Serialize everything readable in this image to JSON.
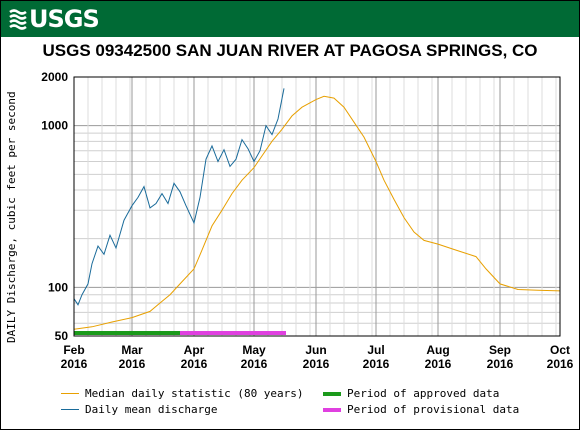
{
  "header": {
    "logo_text": "USGS",
    "logo_icon": "usgs-wave-logo",
    "banner_color": "#006a35"
  },
  "chart_data": {
    "type": "line",
    "title": "USGS 09342500 SAN JUAN RIVER AT PAGOSA SPRINGS, CO",
    "ylabel": "DAILY Discharge, cubic feet per second",
    "yscale": "log",
    "ylim": [
      50,
      2000
    ],
    "y_ticks": [
      50,
      100,
      1000,
      2000
    ],
    "y_tick_labels": [
      "50",
      "100",
      "1000",
      "2000"
    ],
    "xlim": [
      "2016-02-01",
      "2016-10-01"
    ],
    "x_ticks": [
      {
        "date": "2016-02-01",
        "label": [
          "Feb",
          "2016"
        ]
      },
      {
        "date": "2016-03-01",
        "label": [
          "Mar",
          "2016"
        ]
      },
      {
        "date": "2016-04-01",
        "label": [
          "Apr",
          "2016"
        ]
      },
      {
        "date": "2016-05-01",
        "label": [
          "May",
          "2016"
        ]
      },
      {
        "date": "2016-06-01",
        "label": [
          "Jun",
          "2016"
        ]
      },
      {
        "date": "2016-07-01",
        "label": [
          "Jul",
          "2016"
        ]
      },
      {
        "date": "2016-08-01",
        "label": [
          "Aug",
          "2016"
        ]
      },
      {
        "date": "2016-09-01",
        "label": [
          "Sep",
          "2016"
        ]
      },
      {
        "date": "2016-10-01",
        "label": [
          "Oct",
          "2016"
        ]
      }
    ],
    "grid": true,
    "legend_position": "bottom",
    "series": [
      {
        "name": "Median daily statistic (80 years)",
        "color": "#e8a000",
        "points": [
          [
            "2016-02-01",
            55
          ],
          [
            "2016-02-10",
            57
          ],
          [
            "2016-02-20",
            61
          ],
          [
            "2016-03-01",
            65
          ],
          [
            "2016-03-10",
            71
          ],
          [
            "2016-03-15",
            80
          ],
          [
            "2016-03-20",
            90
          ],
          [
            "2016-03-25",
            105
          ],
          [
            "2016-04-01",
            130
          ],
          [
            "2016-04-05",
            170
          ],
          [
            "2016-04-10",
            240
          ],
          [
            "2016-04-15",
            300
          ],
          [
            "2016-04-20",
            380
          ],
          [
            "2016-04-25",
            460
          ],
          [
            "2016-05-01",
            550
          ],
          [
            "2016-05-05",
            650
          ],
          [
            "2016-05-10",
            800
          ],
          [
            "2016-05-15",
            950
          ],
          [
            "2016-05-20",
            1150
          ],
          [
            "2016-05-25",
            1300
          ],
          [
            "2016-06-01",
            1450
          ],
          [
            "2016-06-05",
            1520
          ],
          [
            "2016-06-10",
            1480
          ],
          [
            "2016-06-15",
            1300
          ],
          [
            "2016-06-20",
            1050
          ],
          [
            "2016-06-25",
            850
          ],
          [
            "2016-07-01",
            600
          ],
          [
            "2016-07-05",
            460
          ],
          [
            "2016-07-10",
            350
          ],
          [
            "2016-07-15",
            270
          ],
          [
            "2016-07-20",
            220
          ],
          [
            "2016-07-25",
            195
          ],
          [
            "2016-08-01",
            185
          ],
          [
            "2016-08-10",
            170
          ],
          [
            "2016-08-20",
            155
          ],
          [
            "2016-08-25",
            130
          ],
          [
            "2016-09-01",
            105
          ],
          [
            "2016-09-10",
            97
          ],
          [
            "2016-09-20",
            96
          ],
          [
            "2016-10-01",
            95
          ]
        ]
      },
      {
        "name": "Daily mean discharge",
        "color": "#1a6b9a",
        "points": [
          [
            "2016-02-01",
            85
          ],
          [
            "2016-02-03",
            78
          ],
          [
            "2016-02-05",
            90
          ],
          [
            "2016-02-08",
            105
          ],
          [
            "2016-02-10",
            140
          ],
          [
            "2016-02-13",
            180
          ],
          [
            "2016-02-16",
            160
          ],
          [
            "2016-02-19",
            210
          ],
          [
            "2016-02-22",
            175
          ],
          [
            "2016-02-26",
            260
          ],
          [
            "2016-03-01",
            320
          ],
          [
            "2016-03-04",
            360
          ],
          [
            "2016-03-07",
            420
          ],
          [
            "2016-03-10",
            310
          ],
          [
            "2016-03-13",
            330
          ],
          [
            "2016-03-16",
            380
          ],
          [
            "2016-03-19",
            330
          ],
          [
            "2016-03-22",
            440
          ],
          [
            "2016-03-25",
            390
          ],
          [
            "2016-03-28",
            320
          ],
          [
            "2016-04-01",
            250
          ],
          [
            "2016-04-04",
            360
          ],
          [
            "2016-04-07",
            620
          ],
          [
            "2016-04-10",
            750
          ],
          [
            "2016-04-13",
            600
          ],
          [
            "2016-04-16",
            710
          ],
          [
            "2016-04-19",
            560
          ],
          [
            "2016-04-22",
            620
          ],
          [
            "2016-04-25",
            820
          ],
          [
            "2016-04-28",
            720
          ],
          [
            "2016-05-01",
            600
          ],
          [
            "2016-05-04",
            700
          ],
          [
            "2016-05-07",
            1000
          ],
          [
            "2016-05-10",
            880
          ],
          [
            "2016-05-13",
            1100
          ],
          [
            "2016-05-16",
            1700
          ]
        ]
      }
    ],
    "periods": [
      {
        "name": "Period of approved data",
        "color": "#1b9a1b",
        "start": "2016-02-01",
        "end": "2016-03-25"
      },
      {
        "name": "Period of provisional data",
        "color": "#e040e0",
        "start": "2016-03-25",
        "end": "2016-05-17"
      }
    ]
  },
  "legend": {
    "median_label": "Median daily statistic (80 years)",
    "daily_label": "Daily mean discharge",
    "approved_label": "Period of approved data",
    "provisional_label": "Period of provisional data"
  }
}
